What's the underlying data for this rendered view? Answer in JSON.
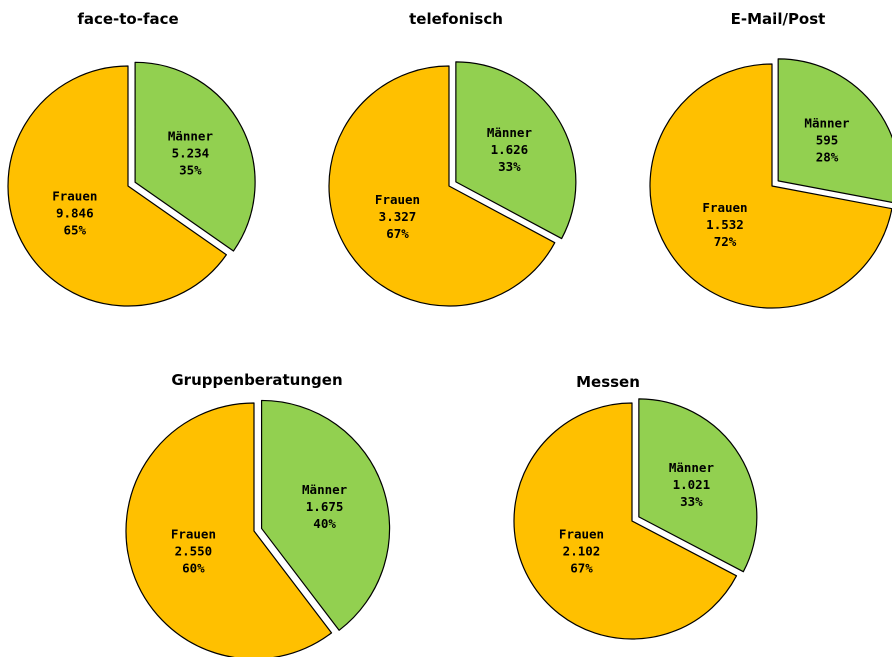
{
  "colors": {
    "frauen": "#FFC000",
    "maenner": "#92D050",
    "stroke": "#000000"
  },
  "chart_data": [
    {
      "type": "pie",
      "title": "face-to-face",
      "slices": [
        {
          "label": "Männer",
          "value": 5234,
          "value_text": "5.234",
          "percent_text": "35%",
          "exploded": true
        },
        {
          "label": "Frauen",
          "value": 9846,
          "value_text": "9.846",
          "percent_text": "65%",
          "exploded": false
        }
      ]
    },
    {
      "type": "pie",
      "title": "telefonisch",
      "slices": [
        {
          "label": "Männer",
          "value": 1626,
          "value_text": "1.626",
          "percent_text": "33%",
          "exploded": true
        },
        {
          "label": "Frauen",
          "value": 3327,
          "value_text": "3.327",
          "percent_text": "67%",
          "exploded": false
        }
      ]
    },
    {
      "type": "pie",
      "title": "E-Mail/Post",
      "slices": [
        {
          "label": "Männer",
          "value": 595,
          "value_text": "595",
          "percent_text": "28%",
          "exploded": true
        },
        {
          "label": "Frauen",
          "value": 1532,
          "value_text": "1.532",
          "percent_text": "72%",
          "exploded": false
        }
      ]
    },
    {
      "type": "pie",
      "title": "Gruppenberatungen",
      "slices": [
        {
          "label": "Männer",
          "value": 1675,
          "value_text": "1.675",
          "percent_text": "40%",
          "exploded": true
        },
        {
          "label": "Frauen",
          "value": 2550,
          "value_text": "2.550",
          "percent_text": "60%",
          "exploded": false
        }
      ]
    },
    {
      "type": "pie",
      "title": "Messen",
      "slices": [
        {
          "label": "Männer",
          "value": 1021,
          "value_text": "1.021",
          "percent_text": "33%",
          "exploded": true
        },
        {
          "label": "Frauen",
          "value": 2102,
          "value_text": "2.102",
          "percent_text": "67%",
          "exploded": false
        }
      ]
    }
  ]
}
